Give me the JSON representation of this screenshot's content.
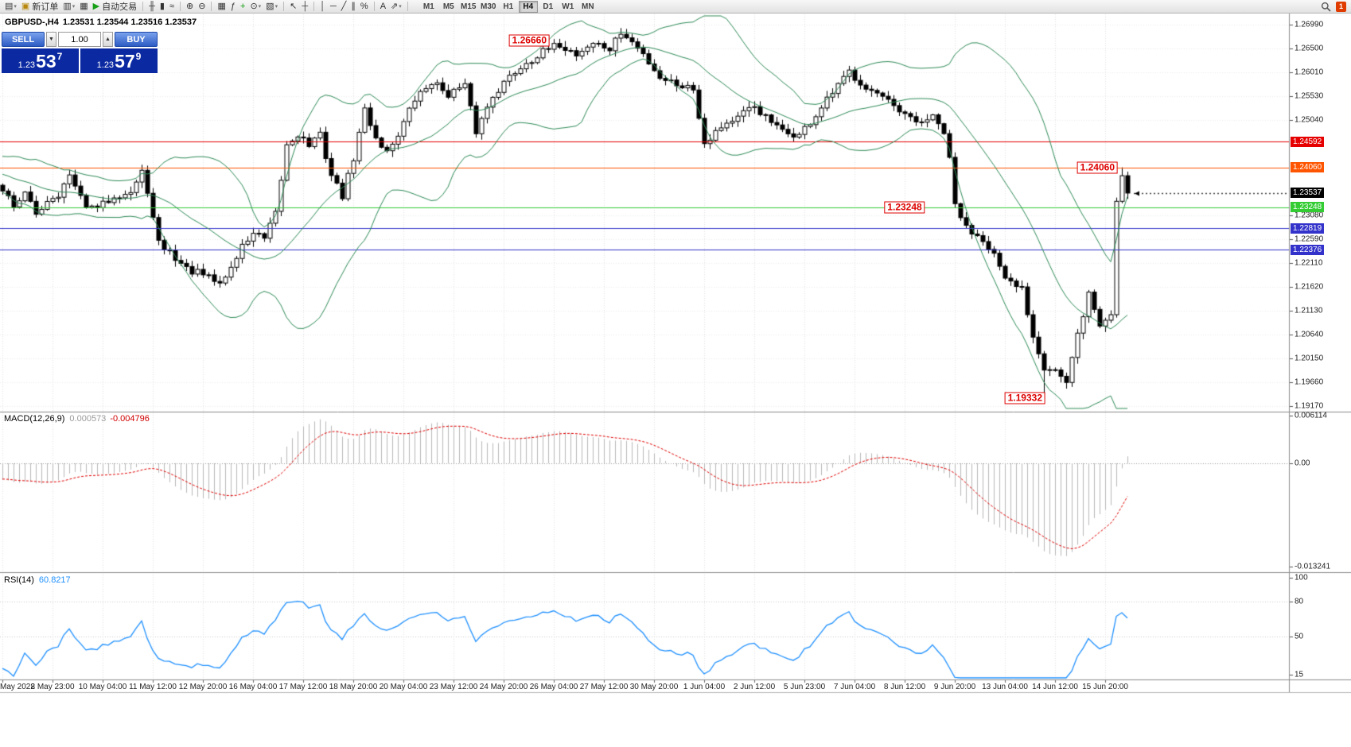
{
  "toolbar": {
    "dropdown_glyph": "▾",
    "items": [
      {
        "type": "icon",
        "name": "new-chart-icon",
        "glyph": "▤",
        "dropdown": true
      },
      {
        "type": "button",
        "name": "new-order-button",
        "glyph": "▣",
        "glyph_color": "#b8860b",
        "label": "新订单"
      },
      {
        "type": "icon",
        "name": "profiles-icon",
        "glyph": "▥",
        "dropdown": true
      },
      {
        "type": "icon",
        "name": "charts-cascade-icon",
        "glyph": "▦"
      },
      {
        "type": "button",
        "name": "autotrading-button",
        "glyph": "▶",
        "glyph_color": "#18a018",
        "label": "自动交易"
      },
      {
        "type": "sep"
      },
      {
        "type": "icon",
        "name": "bars-chart-type-icon",
        "glyph": "╫"
      },
      {
        "type": "icon",
        "name": "candles-chart-type-icon",
        "glyph": "▮"
      },
      {
        "type": "icon",
        "name": "line-chart-type-icon",
        "glyph": "≈"
      },
      {
        "type": "sep"
      },
      {
        "type": "icon",
        "name": "zoom-in-icon",
        "glyph": "⊕"
      },
      {
        "type": "icon",
        "name": "zoom-out-icon",
        "glyph": "⊖"
      },
      {
        "type": "sep"
      },
      {
        "type": "icon",
        "name": "tile-windows-icon",
        "glyph": "▦"
      },
      {
        "type": "icon",
        "name": "indicators-icon",
        "glyph": "ƒ"
      },
      {
        "type": "icon",
        "name": "add-indicator-icon",
        "glyph": "+",
        "glyph_color": "#0a9a0a"
      },
      {
        "type": "icon",
        "name": "period-icon",
        "glyph": "⊙",
        "dropdown": true
      },
      {
        "type": "icon",
        "name": "templates-icon",
        "glyph": "▧",
        "dropdown": true
      },
      {
        "type": "sep"
      },
      {
        "type": "icon",
        "name": "cursor-icon",
        "glyph": "↖"
      },
      {
        "type": "icon",
        "name": "crosshair-icon",
        "glyph": "┼"
      },
      {
        "type": "sep"
      },
      {
        "type": "icon",
        "name": "vertical-line-icon",
        "glyph": "│"
      },
      {
        "type": "icon",
        "name": "horizontal-line-icon",
        "glyph": "─"
      },
      {
        "type": "icon",
        "name": "trendline-icon",
        "glyph": "╱"
      },
      {
        "type": "icon",
        "name": "channel-icon",
        "glyph": "∥"
      },
      {
        "type": "icon",
        "name": "fibonacci-icon",
        "glyph": "%"
      },
      {
        "type": "sep"
      },
      {
        "type": "icon",
        "name": "text-label-icon",
        "glyph": "A"
      },
      {
        "type": "icon",
        "name": "arrow-objects-icon",
        "glyph": "⇗",
        "dropdown": true
      },
      {
        "type": "sep"
      }
    ],
    "timeframes": [
      "M1",
      "M5",
      "M15",
      "M30",
      "H1",
      "H4",
      "D1",
      "W1",
      "MN"
    ],
    "active_timeframe": "H4",
    "alert_badge": "1"
  },
  "chart": {
    "symbol_title": "GBPUSD-,H4",
    "ohlc_text": "1.23531 1.23544 1.23516 1.23537",
    "one_click": {
      "sell_label": "SELL",
      "buy_label": "BUY",
      "volume": "1.00",
      "spin_down_glyph": "▼",
      "spin_up_glyph": "▲",
      "sell_price": {
        "prefix": "1.23",
        "big": "53",
        "sup": "7"
      },
      "buy_price": {
        "prefix": "1.23",
        "big": "57",
        "sup": "9"
      }
    }
  },
  "price_axis": {
    "ticks": [
      {
        "label": "1.26990",
        "value": 1.2699
      },
      {
        "label": "1.26500",
        "value": 1.265
      },
      {
        "label": "1.26010",
        "value": 1.2601
      },
      {
        "label": "1.25530",
        "value": 1.2553
      },
      {
        "label": "1.25040",
        "value": 1.2504
      },
      {
        "label": "1.23080",
        "value": 1.2308
      },
      {
        "label": "1.22590",
        "value": 1.2259
      },
      {
        "label": "1.22110",
        "value": 1.2211
      },
      {
        "label": "1.21620",
        "value": 1.2162
      },
      {
        "label": "1.21130",
        "value": 1.2113
      },
      {
        "label": "1.20640",
        "value": 1.2064
      },
      {
        "label": "1.20150",
        "value": 1.2015
      },
      {
        "label": "1.19660",
        "value": 1.1966
      },
      {
        "label": "1.19170",
        "value": 1.1917
      }
    ],
    "current": {
      "label": "1.23537",
      "value": 1.23537
    }
  },
  "macd_panel": {
    "title": "MACD(12,26,9)",
    "value": "0.000573",
    "signal_value": "-0.004796",
    "axis": [
      {
        "label": "0.006114",
        "value": 0.006114
      },
      {
        "label": "0.00",
        "value": 0
      },
      {
        "label": "-0.013241",
        "value": -0.013241
      }
    ]
  },
  "rsi_panel": {
    "title": "RSI(14)",
    "value": "60.8217",
    "axis": [
      {
        "label": "100",
        "value": 100
      },
      {
        "label": "80",
        "value": 80
      },
      {
        "label": "50",
        "value": 50
      },
      {
        "label": "15",
        "value": 15
      }
    ]
  },
  "time_axis": {
    "labels": [
      "May 2022",
      "8 May 23:00",
      "10 May 04:00",
      "11 May 12:00",
      "12 May 20:00",
      "16 May 04:00",
      "17 May 12:00",
      "18 May 20:00",
      "20 May 04:00",
      "23 May 12:00",
      "24 May 20:00",
      "26 May 04:00",
      "27 May 12:00",
      "30 May 20:00",
      "1 Jun 04:00",
      "2 Jun 12:00",
      "5 Jun 23:00",
      "7 Jun 04:00",
      "8 Jun 12:00",
      "9 Jun 20:00",
      "13 Jun 04:00",
      "14 Jun 12:00",
      "15 Jun 20:00"
    ]
  },
  "chart_data": {
    "type": "candlestick",
    "symbol": "GBPUSD-",
    "timeframe": "H4",
    "price_range": {
      "top": 1.2699,
      "bottom": 1.1917
    },
    "current_price": 1.23537,
    "indicators": {
      "bollinger": {
        "period": 20,
        "deviation": 2
      },
      "macd": {
        "fast": 12,
        "slow": 26,
        "signal": 9
      },
      "rsi": {
        "period": 14
      }
    },
    "price_waypoints": [
      [
        0,
        1.2362
      ],
      [
        2,
        1.233
      ],
      [
        4,
        1.2352
      ],
      [
        6,
        1.231
      ],
      [
        8,
        1.234
      ],
      [
        10,
        1.2352
      ],
      [
        12,
        1.2388
      ],
      [
        14,
        1.2342
      ],
      [
        16,
        1.232
      ],
      [
        18,
        1.233
      ],
      [
        20,
        1.235
      ],
      [
        23,
        1.2355
      ],
      [
        25,
        1.2394
      ],
      [
        26,
        1.236
      ],
      [
        27,
        1.23
      ],
      [
        28,
        1.225
      ],
      [
        30,
        1.2232
      ],
      [
        33,
        1.2198
      ],
      [
        36,
        1.2185
      ],
      [
        39,
        1.2168
      ],
      [
        41,
        1.22
      ],
      [
        43,
        1.2245
      ],
      [
        45,
        1.2272
      ],
      [
        47,
        1.2258
      ],
      [
        49,
        1.231
      ],
      [
        51,
        1.2452
      ],
      [
        53,
        1.2475
      ],
      [
        55,
        1.2452
      ],
      [
        57,
        1.2472
      ],
      [
        59,
        1.239
      ],
      [
        61,
        1.2348
      ],
      [
        63,
        1.2425
      ],
      [
        65,
        1.2525
      ],
      [
        67,
        1.2468
      ],
      [
        69,
        1.2438
      ],
      [
        71,
        1.2475
      ],
      [
        74,
        1.2545
      ],
      [
        77,
        1.2582
      ],
      [
        80,
        1.2558
      ],
      [
        83,
        1.2572
      ],
      [
        85,
        1.248
      ],
      [
        88,
        1.2555
      ],
      [
        91,
        1.2592
      ],
      [
        94,
        1.2622
      ],
      [
        97,
        1.2642
      ],
      [
        100,
        1.2658
      ],
      [
        103,
        1.2638
      ],
      [
        106,
        1.2662
      ],
      [
        109,
        1.2648
      ],
      [
        111,
        1.2682
      ],
      [
        113,
        1.2662
      ],
      [
        115,
        1.2638
      ],
      [
        118,
        1.2592
      ],
      [
        121,
        1.2578
      ],
      [
        124,
        1.2568
      ],
      [
        126,
        1.2458
      ],
      [
        129,
        1.2492
      ],
      [
        132,
        1.2508
      ],
      [
        135,
        1.2532
      ],
      [
        137,
        1.2508
      ],
      [
        140,
        1.2478
      ],
      [
        143,
        1.2472
      ],
      [
        146,
        1.2512
      ],
      [
        149,
        1.2558
      ],
      [
        152,
        1.2602
      ],
      [
        155,
        1.2572
      ],
      [
        158,
        1.2548
      ],
      [
        161,
        1.2518
      ],
      [
        164,
        1.2498
      ],
      [
        167,
        1.2508
      ],
      [
        169,
        1.2478
      ],
      [
        170,
        1.242
      ],
      [
        171,
        1.233
      ],
      [
        173,
        1.2282
      ],
      [
        176,
        1.2262
      ],
      [
        178,
        1.2228
      ],
      [
        180,
        1.2172
      ],
      [
        183,
        1.2158
      ],
      [
        185,
        1.2062
      ],
      [
        187,
        1.1998
      ],
      [
        189,
        1.1992
      ],
      [
        191,
        1.1962
      ],
      [
        193,
        1.2062
      ],
      [
        195,
        1.2148
      ],
      [
        197,
        1.2082
      ],
      [
        199,
        1.2105
      ],
      [
        200,
        1.2338
      ],
      [
        201,
        1.2392
      ],
      [
        202,
        1.23537
      ]
    ],
    "special_points": {
      "high_index": 111,
      "high": 1.2692,
      "low_index": 187,
      "low": 1.19332,
      "last_high": 1.24065
    },
    "levels": [
      {
        "price": 1.24592,
        "color": "#e60000",
        "label": "1.24592"
      },
      {
        "price": 1.2406,
        "color": "#ff5500",
        "label": "1.24060"
      },
      {
        "price": 1.23248,
        "color": "#33cc33",
        "label": "1.23248"
      },
      {
        "price": 1.22819,
        "color": "#3333cc",
        "label": "1.22819"
      },
      {
        "price": 1.22376,
        "color": "#3333cc",
        "label": "1.22376"
      }
    ],
    "annotations": [
      {
        "text": "1.26660",
        "price": 1.2666,
        "anchor_index": 99,
        "align": "right"
      },
      {
        "text": "1.24060",
        "price": 1.2406,
        "anchor_index": 201,
        "align": "right"
      },
      {
        "text": "1.23248",
        "price": 1.23248,
        "anchor_index": 162,
        "align": "center"
      },
      {
        "text": "1.19332",
        "price": 1.19332,
        "anchor_index": 188,
        "align": "right"
      }
    ],
    "colors": {
      "candle_up": "#ffffff",
      "candle_down": "#000000",
      "candle_border": "#000000",
      "bollinger": "#2e8b57",
      "macd_histogram": "#b8b8b8",
      "macd_signal": "#e00000",
      "rsi_line": "#1e90ff",
      "grid": "#e2e2e2",
      "background": "#ffffff"
    }
  }
}
